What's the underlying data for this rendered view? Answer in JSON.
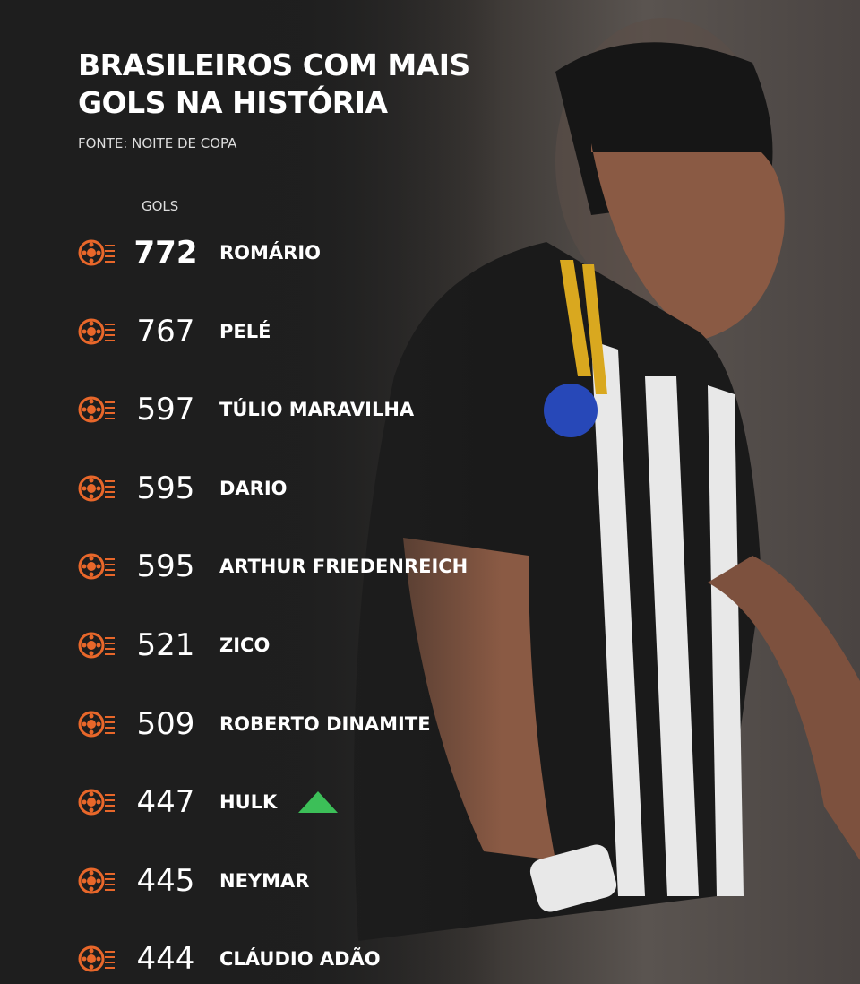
{
  "title_line1": "BRASILEIROS COM MAIS",
  "title_line2": "GOLS NA HISTÓRIA",
  "source": "FONTE: NOITE DE COPA",
  "column_header": "GOLS",
  "accent_color": "#e8672a",
  "up_indicator_color": "#3cbf58",
  "row_icon": "soccer-ball-speed-icon",
  "players": [
    {
      "goals": "772",
      "name": "ROMÁRIO"
    },
    {
      "goals": "767",
      "name": "PELÉ"
    },
    {
      "goals": "597",
      "name": "TÚLIO MARAVILHA"
    },
    {
      "goals": "595",
      "name": "DARIO"
    },
    {
      "goals": "595",
      "name": "ARTHUR FRIEDENREICH"
    },
    {
      "goals": "521",
      "name": "ZICO"
    },
    {
      "goals": "509",
      "name": "ROBERTO DINAMITE"
    },
    {
      "goals": "447",
      "name": "HULK",
      "trend": "up"
    },
    {
      "goals": "445",
      "name": "NEYMAR"
    },
    {
      "goals": "444",
      "name": "CLÁUDIO ADÃO"
    }
  ]
}
